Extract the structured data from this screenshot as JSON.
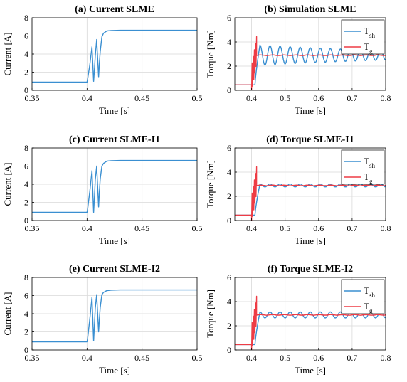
{
  "colors": {
    "blue": "#3a8fd1",
    "red": "#ee3c45",
    "grid": "#d9d9d9",
    "axis": "#000000"
  },
  "chart_data": [
    {
      "id": "a",
      "type": "line",
      "title": "(a) Current SLME",
      "xlabel": "Time [s]",
      "ylabel": "Current [A]",
      "xlim": [
        0.35,
        0.5
      ],
      "ylim": [
        0,
        8
      ],
      "xticks": [
        0.35,
        0.4,
        0.45,
        0.5
      ],
      "xticklabels": [
        "0.35",
        "0.4",
        "0.45",
        "0.5"
      ],
      "yticks": [
        0,
        2,
        4,
        6,
        8
      ],
      "yticklabels": [
        "0",
        "2",
        "4",
        "6",
        "8"
      ],
      "grid": true,
      "legend": null,
      "series": [
        {
          "color": "blue",
          "x": [
            0.35,
            0.4,
            0.4005,
            0.4025,
            0.4045,
            0.406,
            0.4068,
            0.4075,
            0.4088,
            0.4105,
            0.4112,
            0.412,
            0.4135,
            0.415,
            0.418,
            0.422,
            0.43,
            0.5
          ],
          "y": [
            0.9,
            0.9,
            1.2,
            2.8,
            4.8,
            1.0,
            2.5,
            3.8,
            5.6,
            1.5,
            3.0,
            4.3,
            5.9,
            6.3,
            6.55,
            6.6,
            6.62,
            6.62
          ]
        }
      ]
    },
    {
      "id": "b",
      "type": "line",
      "title": "(b) Simulation SLME",
      "xlabel": "Time [s]",
      "ylabel": "Torque [Nm]",
      "xlim": [
        0.35,
        0.8
      ],
      "ylim": [
        0,
        6
      ],
      "xticks": [
        0.4,
        0.5,
        0.6,
        0.7,
        0.8
      ],
      "xticklabels": [
        "0.4",
        "0.5",
        "0.6",
        "0.7",
        "0.8"
      ],
      "yticks": [
        0,
        2,
        4,
        6
      ],
      "yticklabels": [
        "0",
        "2",
        "4",
        "6"
      ],
      "grid": true,
      "legend": "top-right",
      "series": [
        {
          "name": "T",
          "sub": "sh",
          "color": "blue",
          "gen": "osc",
          "start": 0.41,
          "rise": 0.425,
          "steady": 2.9,
          "amp": 0.85,
          "period": 0.03,
          "decay": 0.6
        },
        {
          "name": "T",
          "sub": "g",
          "color": "red",
          "gen": "step",
          "start": 0.4,
          "end": 0.415,
          "steady": 2.9,
          "amp": 1.1
        }
      ]
    },
    {
      "id": "c",
      "type": "line",
      "title": "(c) Current SLME-I1",
      "xlabel": "Time [s]",
      "ylabel": "Current [A]",
      "xlim": [
        0.35,
        0.5
      ],
      "ylim": [
        0,
        8
      ],
      "xticks": [
        0.35,
        0.4,
        0.45,
        0.5
      ],
      "xticklabels": [
        "0.35",
        "0.4",
        "0.45",
        "0.5"
      ],
      "yticks": [
        0,
        2,
        4,
        6,
        8
      ],
      "yticklabels": [
        "0",
        "2",
        "4",
        "6",
        "8"
      ],
      "grid": true,
      "legend": null,
      "series": [
        {
          "color": "blue",
          "x": [
            0.35,
            0.4,
            0.4005,
            0.4025,
            0.4045,
            0.406,
            0.4068,
            0.4075,
            0.4088,
            0.4105,
            0.4112,
            0.412,
            0.4135,
            0.415,
            0.418,
            0.422,
            0.43,
            0.5
          ],
          "y": [
            0.9,
            0.9,
            1.2,
            3.2,
            5.5,
            0.9,
            2.8,
            4.5,
            6.0,
            1.5,
            3.2,
            4.6,
            6.0,
            6.3,
            6.55,
            6.6,
            6.62,
            6.62
          ]
        }
      ]
    },
    {
      "id": "d",
      "type": "line",
      "title": "(d) Torque SLME-I1",
      "xlabel": "Time [s]",
      "ylabel": "Torque [Nm]",
      "xlim": [
        0.35,
        0.8
      ],
      "ylim": [
        0,
        6
      ],
      "xticks": [
        0.4,
        0.5,
        0.6,
        0.7,
        0.8
      ],
      "xticklabels": [
        "0.4",
        "0.5",
        "0.6",
        "0.7",
        "0.8"
      ],
      "yticks": [
        0,
        2,
        4,
        6
      ],
      "yticklabels": [
        "0",
        "2",
        "4",
        "6"
      ],
      "grid": true,
      "legend": "top-right",
      "series": [
        {
          "name": "T",
          "sub": "sh",
          "color": "blue",
          "gen": "osc",
          "start": 0.41,
          "rise": 0.425,
          "steady": 2.9,
          "amp": 0.12,
          "period": 0.03,
          "decay": 0
        },
        {
          "name": "T",
          "sub": "g",
          "color": "red",
          "gen": "step",
          "start": 0.4,
          "end": 0.415,
          "steady": 2.9,
          "amp": 1.1
        }
      ]
    },
    {
      "id": "e",
      "type": "line",
      "title": "(e) Current SLME-I2",
      "xlabel": "Time [s]",
      "ylabel": "Current [A]",
      "xlim": [
        0.35,
        0.5
      ],
      "ylim": [
        0,
        8
      ],
      "xticks": [
        0.35,
        0.4,
        0.45,
        0.5
      ],
      "xticklabels": [
        "0.35",
        "0.4",
        "0.45",
        "0.5"
      ],
      "yticks": [
        0,
        2,
        4,
        6,
        8
      ],
      "yticklabels": [
        "0",
        "2",
        "4",
        "6",
        "8"
      ],
      "grid": true,
      "legend": null,
      "series": [
        {
          "color": "blue",
          "x": [
            0.35,
            0.4,
            0.4005,
            0.4025,
            0.4045,
            0.406,
            0.4068,
            0.4075,
            0.4088,
            0.4105,
            0.4112,
            0.412,
            0.4135,
            0.415,
            0.418,
            0.422,
            0.43,
            0.5
          ],
          "y": [
            0.9,
            0.9,
            1.2,
            3.4,
            5.8,
            1.0,
            3.0,
            4.6,
            6.1,
            2.0,
            3.4,
            4.7,
            6.1,
            6.35,
            6.55,
            6.6,
            6.62,
            6.62
          ]
        }
      ]
    },
    {
      "id": "f",
      "type": "line",
      "title": "(f) Torque SLME-I2",
      "xlabel": "Time [s]",
      "ylabel": "Torque [Nm]",
      "xlim": [
        0.35,
        0.8
      ],
      "ylim": [
        0,
        6
      ],
      "xticks": [
        0.4,
        0.5,
        0.6,
        0.7,
        0.8
      ],
      "xticklabels": [
        "0.4",
        "0.5",
        "0.6",
        "0.7",
        "0.8"
      ],
      "yticks": [
        0,
        2,
        4,
        6
      ],
      "yticklabels": [
        "0",
        "2",
        "4",
        "6"
      ],
      "grid": true,
      "legend": "top-right",
      "series": [
        {
          "name": "T",
          "sub": "sh",
          "color": "blue",
          "gen": "osc",
          "start": 0.41,
          "rise": 0.425,
          "steady": 2.9,
          "amp": 0.25,
          "period": 0.03,
          "decay": 0
        },
        {
          "name": "T",
          "sub": "g",
          "color": "red",
          "gen": "step",
          "start": 0.4,
          "end": 0.415,
          "steady": 2.9,
          "amp": 1.1
        }
      ]
    }
  ]
}
